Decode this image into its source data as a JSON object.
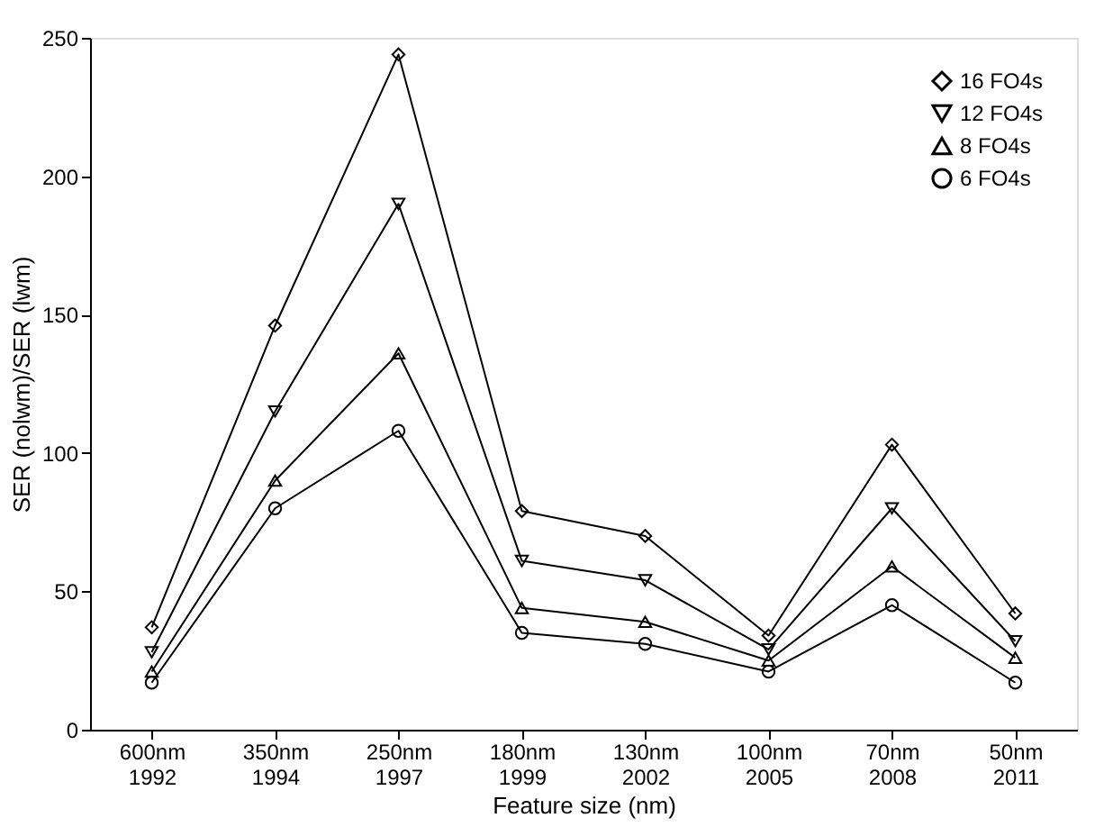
{
  "chart_data": {
    "type": "line",
    "xlabel": "Feature size (nm)",
    "ylabel": "SER (nolwm)/SER (lwm)",
    "categories": [
      "600nm\n1992",
      "350nm\n1994",
      "250nm\n1997",
      "180nm\n1999",
      "130nm\n2002",
      "100nm\n2005",
      "70nm\n2008",
      "50nm\n2011"
    ],
    "series": [
      {
        "name": "16 FO4s",
        "color": "#000000",
        "marker": "diamond",
        "values": [
          37,
          146,
          244,
          79,
          70,
          34,
          103,
          42
        ]
      },
      {
        "name": "12 FO4s",
        "color": "#000000",
        "marker": "triangle-down",
        "values": [
          28,
          115,
          190,
          61,
          54,
          29,
          80,
          32
        ]
      },
      {
        "name": "8 FO4s",
        "color": "#000000",
        "marker": "triangle",
        "values": [
          21,
          90,
          136,
          44,
          39,
          25,
          59,
          26
        ]
      },
      {
        "name": "6 FO4s",
        "color": "#000000",
        "marker": "circle",
        "values": [
          17,
          80,
          108,
          35,
          31,
          21,
          45,
          17
        ]
      }
    ],
    "ylim": [
      0,
      250
    ],
    "yticks": [
      0,
      50,
      100,
      150,
      200,
      250
    ],
    "grid": false,
    "legend": "top right",
    "line_style": "solid"
  }
}
